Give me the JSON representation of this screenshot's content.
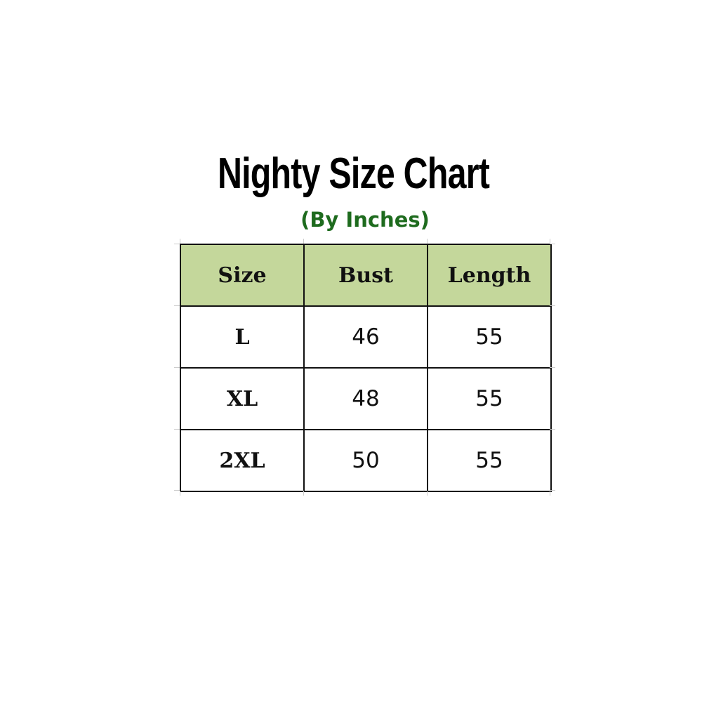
{
  "title": "Nighty Size Chart",
  "subtitle": "(By Inches)",
  "colors": {
    "header_bg": "#c4d79b",
    "subtitle": "#1e6b1e",
    "border": "#111111"
  },
  "table": {
    "headers": [
      "Size",
      "Bust",
      "Length"
    ],
    "rows": [
      [
        "L",
        "46",
        "55"
      ],
      [
        "XL",
        "48",
        "55"
      ],
      [
        "2XL",
        "50",
        "55"
      ]
    ]
  }
}
